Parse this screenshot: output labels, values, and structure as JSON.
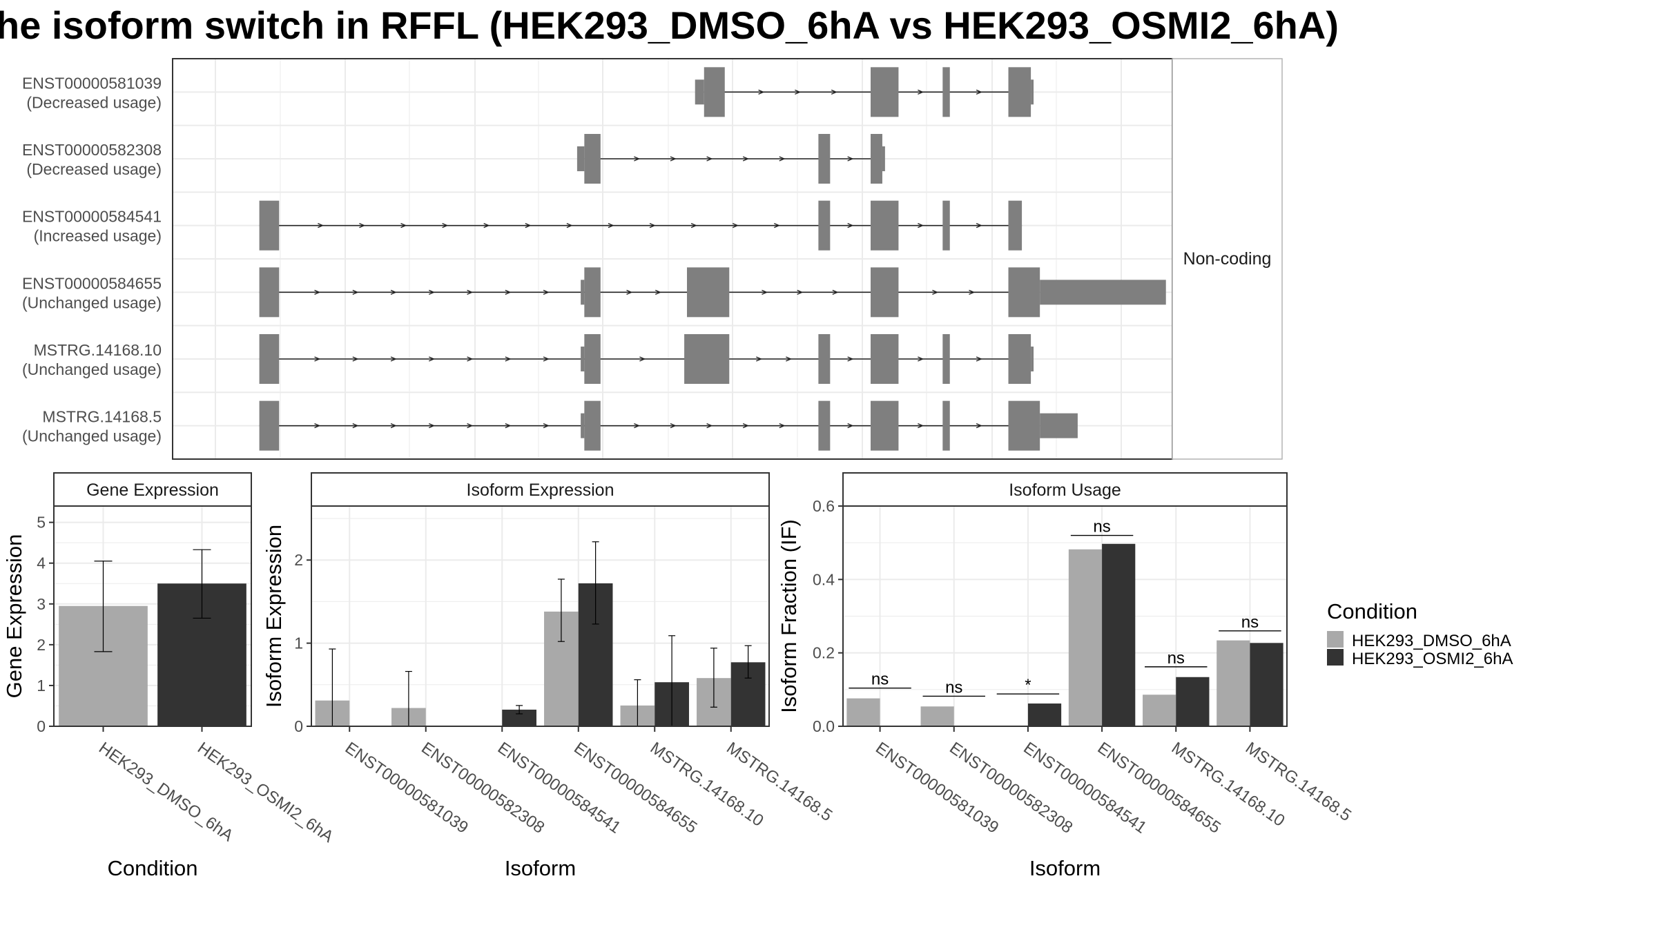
{
  "title": "he isoform switch in RFFL (HEK293_DMSO_6hA vs HEK293_OSMI2_6hA)",
  "colors": {
    "dmso": "#a9a9a9",
    "osmi": "#333333",
    "exon": "#7f7f7f",
    "grid": "#ebebeb",
    "border": "#333333",
    "strip_bg": "#ffffff"
  },
  "chart_data": [
    {
      "type": "gene-structure",
      "strip_label": "Non-coding",
      "coord_range": [
        0,
        1
      ],
      "transcripts": [
        {
          "id": "ENST00000581039",
          "usage": "(Decreased usage)",
          "exons": [
            [
              0.542,
              0.565
            ],
            [
              0.727,
              0.758
            ],
            [
              0.807,
              0.815
            ],
            [
              0.88,
              0.905
            ]
          ],
          "flanks": [
            [
              0.532,
              0.542,
              "left"
            ],
            [
              0.905,
              0.908,
              "right"
            ]
          ]
        },
        {
          "id": "ENST00000582308",
          "usage": "(Decreased usage)",
          "exons": [
            [
              0.409,
              0.427
            ],
            [
              0.669,
              0.682
            ],
            [
              0.727,
              0.74
            ]
          ],
          "flanks": [
            [
              0.401,
              0.409,
              "left"
            ],
            [
              0.74,
              0.743,
              "right"
            ]
          ]
        },
        {
          "id": "ENST00000584541",
          "usage": "(Increased usage)",
          "exons": [
            [
              0.048,
              0.07
            ],
            [
              0.669,
              0.682
            ],
            [
              0.727,
              0.758
            ],
            [
              0.807,
              0.815
            ],
            [
              0.88,
              0.895
            ]
          ],
          "flanks": []
        },
        {
          "id": "ENST00000584655",
          "usage": "(Unchanged usage)",
          "exons": [
            [
              0.048,
              0.07
            ],
            [
              0.409,
              0.427
            ],
            [
              0.523,
              0.57
            ],
            [
              0.727,
              0.758
            ],
            [
              0.88,
              0.915
            ]
          ],
          "flanks": [
            [
              0.405,
              0.409,
              "left"
            ],
            [
              0.915,
              1.055,
              "right"
            ]
          ]
        },
        {
          "id": "MSTRG.14168.10",
          "usage": "(Unchanged usage)",
          "exons": [
            [
              0.048,
              0.07
            ],
            [
              0.409,
              0.427
            ],
            [
              0.52,
              0.57
            ],
            [
              0.669,
              0.682
            ],
            [
              0.727,
              0.758
            ],
            [
              0.807,
              0.815
            ],
            [
              0.88,
              0.905
            ]
          ],
          "flanks": [
            [
              0.405,
              0.409,
              "left"
            ],
            [
              0.905,
              0.908,
              "right"
            ]
          ]
        },
        {
          "id": "MSTRG.14168.5",
          "usage": "(Unchanged usage)",
          "exons": [
            [
              0.048,
              0.07
            ],
            [
              0.409,
              0.427
            ],
            [
              0.669,
              0.682
            ],
            [
              0.727,
              0.758
            ],
            [
              0.807,
              0.815
            ],
            [
              0.88,
              0.915
            ]
          ],
          "flanks": [
            [
              0.405,
              0.409,
              "left"
            ],
            [
              0.915,
              0.957,
              "right"
            ]
          ]
        }
      ]
    },
    {
      "type": "bar",
      "strip_label": "Gene Expression",
      "xlabel": "Condition",
      "ylabel": "Gene Expression",
      "ylim": [
        0,
        5.4
      ],
      "yticks": [
        0,
        1,
        2,
        3,
        4,
        5
      ],
      "categories": [
        "HEK293_DMSO_6hA",
        "HEK293_OSMI2_6hA"
      ],
      "values": [
        2.95,
        3.5
      ],
      "errors": [
        [
          1.83,
          4.05
        ],
        [
          2.65,
          4.33
        ]
      ]
    },
    {
      "type": "bar",
      "strip_label": "Isoform Expression",
      "xlabel": "Isoform",
      "ylabel": "Isoform Expression",
      "ylim": [
        0,
        2.65
      ],
      "yticks": [
        0,
        1,
        2
      ],
      "categories": [
        "ENST00000581039",
        "ENST00000582308",
        "ENST00000584541",
        "ENST00000584655",
        "MSTRG.14168.10",
        "MSTRG.14168.5"
      ],
      "series": [
        {
          "name": "HEK293_DMSO_6hA",
          "values": [
            0.31,
            0.22,
            0.0,
            1.38,
            0.25,
            0.58
          ],
          "errors": [
            [
              0.0,
              0.93
            ],
            [
              0.0,
              0.66
            ],
            [
              0.0,
              0.0
            ],
            [
              1.02,
              1.77
            ],
            [
              0.0,
              0.56
            ],
            [
              0.23,
              0.94
            ]
          ]
        },
        {
          "name": "HEK293_OSMI2_6hA",
          "values": [
            0.0,
            0.0,
            0.2,
            1.72,
            0.53,
            0.77
          ],
          "errors": [
            [
              0.0,
              0.0
            ],
            [
              0.0,
              0.0
            ],
            [
              0.15,
              0.25
            ],
            [
              1.23,
              2.22
            ],
            [
              0.0,
              1.09
            ],
            [
              0.58,
              0.97
            ]
          ]
        }
      ]
    },
    {
      "type": "bar",
      "strip_label": "Isoform Usage",
      "xlabel": "Isoform",
      "ylabel": "Isoform Fraction (IF)",
      "ylim": [
        0,
        0.6
      ],
      "yticks": [
        0.0,
        0.2,
        0.4,
        0.6
      ],
      "yticklabels": [
        "0.0",
        "0.2",
        "0.4",
        "0.6"
      ],
      "categories": [
        "ENST00000581039",
        "ENST00000582308",
        "ENST00000584541",
        "ENST00000584655",
        "MSTRG.14168.10",
        "MSTRG.14168.5"
      ],
      "series": [
        {
          "name": "HEK293_DMSO_6hA",
          "values": [
            0.076,
            0.054,
            0.0,
            0.482,
            0.086,
            0.234
          ]
        },
        {
          "name": "HEK293_OSMI2_6hA",
          "values": [
            0.0,
            0.0,
            0.062,
            0.497,
            0.134,
            0.227
          ]
        }
      ],
      "significance": [
        "ns",
        "ns",
        "*",
        "ns",
        "ns",
        "ns"
      ],
      "sig_line_y": [
        0.104,
        0.082,
        0.088,
        0.52,
        0.162,
        0.26
      ]
    }
  ],
  "legend": {
    "title": "Condition",
    "entries": [
      "HEK293_DMSO_6hA",
      "HEK293_OSMI2_6hA"
    ]
  }
}
